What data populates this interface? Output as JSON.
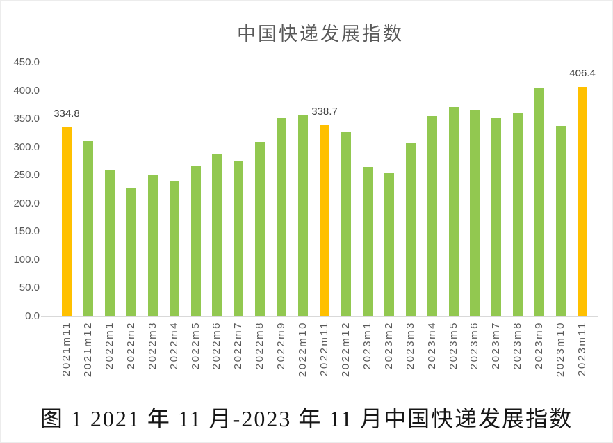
{
  "figure": {
    "caption": "图 1 2021 年 11 月-2023 年 11 月中国快递发展指数"
  },
  "chart_data": {
    "type": "bar",
    "title": "中国快递发展指数",
    "categories": [
      "2021m11",
      "2021m12",
      "2022m1",
      "2022m2",
      "2022m3",
      "2022m4",
      "2022m5",
      "2022m6",
      "2022m7",
      "2022m8",
      "2022m9",
      "2022m10",
      "2022m11",
      "2022m12",
      "2023m1",
      "2023m2",
      "2023m3",
      "2023m4",
      "2023m5",
      "2023m6",
      "2023m7",
      "2023m8",
      "2023m9",
      "2023m10",
      "2023m11"
    ],
    "values": [
      334.8,
      311.0,
      260.0,
      228.5,
      250.0,
      240.5,
      268.0,
      289.0,
      275.0,
      310.0,
      352.0,
      357.0,
      338.7,
      327.0,
      265.0,
      254.0,
      307.0,
      355.0,
      370.5,
      366.0,
      351.5,
      360.5,
      405.4,
      338.0,
      406.4
    ],
    "labeled_points": [
      {
        "category": "2021m11",
        "label": "334.8"
      },
      {
        "category": "2022m11",
        "label": "338.7"
      },
      {
        "category": "2023m11",
        "label": "406.4"
      }
    ],
    "highlighted_categories": [
      "2021m11",
      "2022m11",
      "2023m11"
    ],
    "yticks": [
      "0.0",
      "50.0",
      "100.0",
      "150.0",
      "200.0",
      "250.0",
      "300.0",
      "350.0",
      "400.0",
      "450.0"
    ],
    "ylim": [
      0,
      450
    ],
    "xlabel": "",
    "ylabel": "",
    "grid": false,
    "legend": false,
    "colors": {
      "bar": "#92C850",
      "bar_highlight": "#FFC000",
      "axis_line": "#D9D9D9",
      "tick_text": "#595959",
      "data_label_text": "#404040",
      "title_text": "#595959",
      "caption_text": "#161616"
    }
  }
}
